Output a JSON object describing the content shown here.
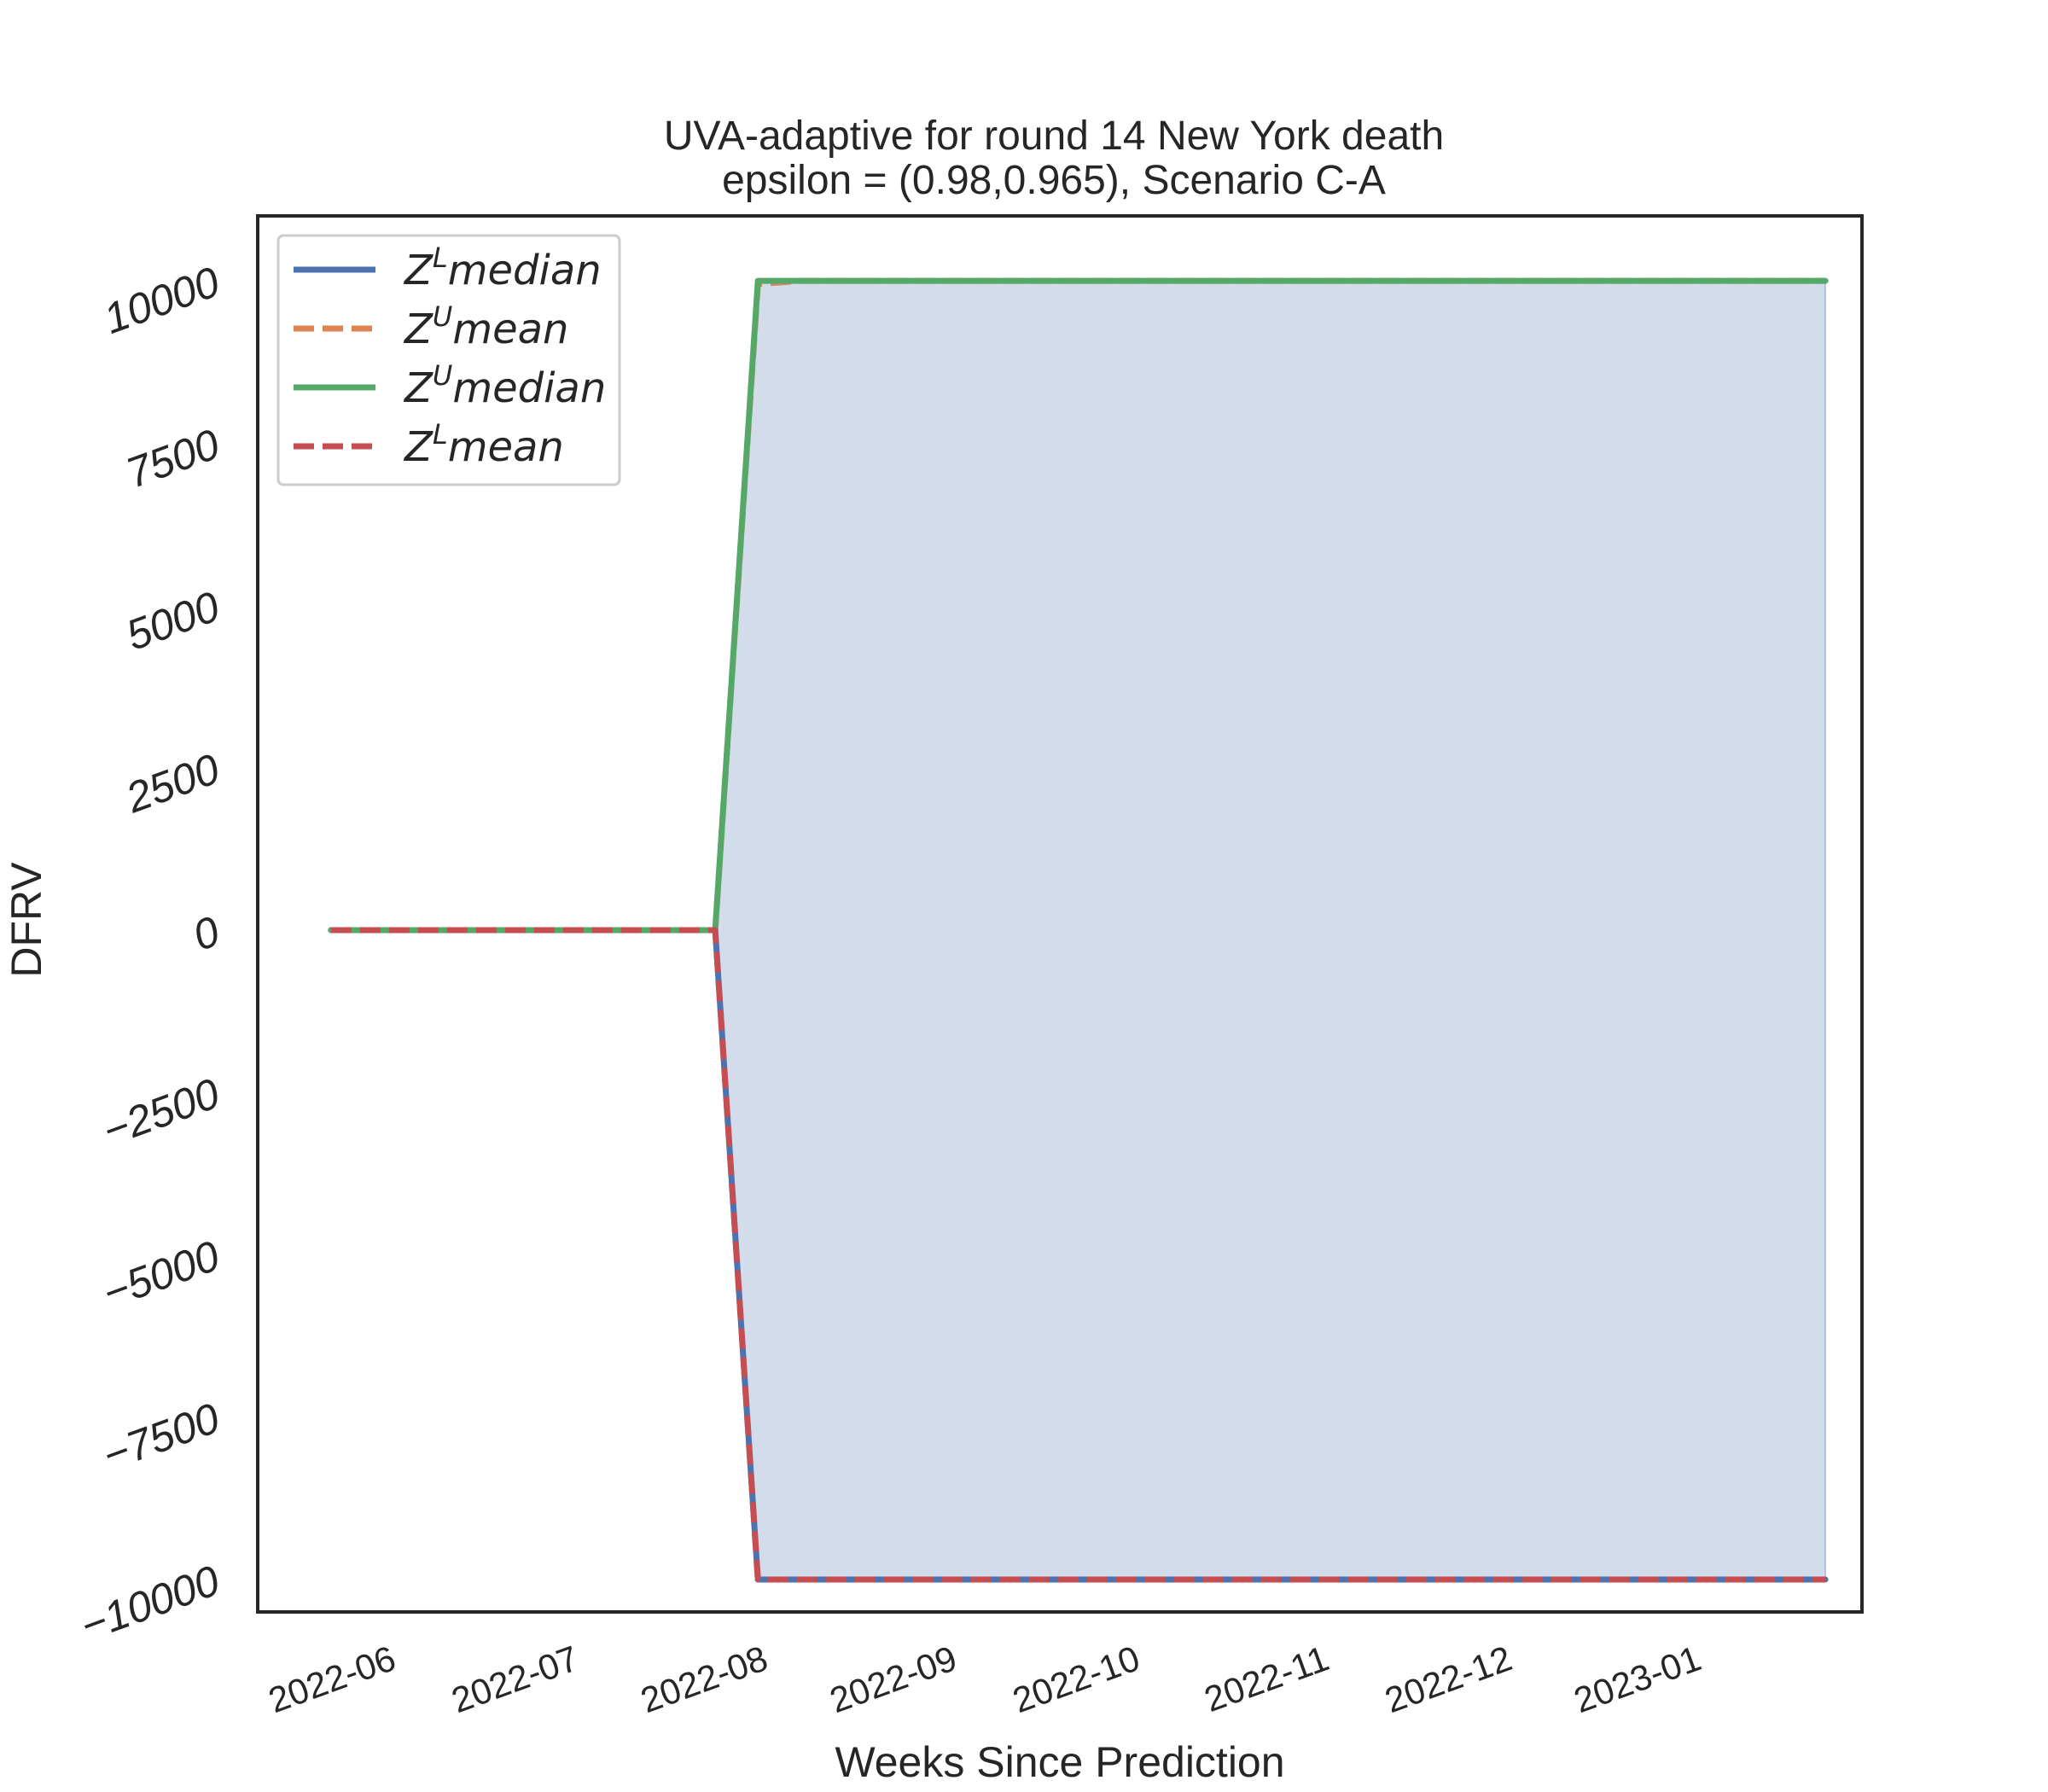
{
  "chart_data": {
    "type": "line",
    "title_line1": "UVA-adaptive for round 14 New York  death",
    "title_line2": "epsilon = (0.98,0.965), Scenario C-A",
    "xlabel": "Weeks Since Prediction",
    "ylabel": "DFRV",
    "ylim": [
      -10500,
      11000
    ],
    "y_ticks": [
      -10000,
      -7500,
      -5000,
      -2500,
      0,
      2500,
      5000,
      7500,
      10000
    ],
    "y_tick_labels": [
      "−10000",
      "−7500",
      "−5000",
      "−2500",
      "0",
      "2500",
      "5000",
      "7500",
      "10000"
    ],
    "xlim": [
      "2022-05-09",
      "2023-01-27"
    ],
    "x_ticks": [
      "2022-06-01",
      "2022-07-01",
      "2022-08-01",
      "2022-09-01",
      "2022-10-01",
      "2022-11-01",
      "2022-12-01",
      "2023-01-01"
    ],
    "x_tick_labels": [
      "2022-06",
      "2022-07",
      "2022-08",
      "2022-09",
      "2022-10",
      "2022-11",
      "2022-12",
      "2023-01"
    ],
    "grid": false,
    "legend_placement": "top-left",
    "x": [
      "2022-05-21",
      "2022-07-23",
      "2022-07-30",
      "2022-08-06",
      "2023-01-21"
    ],
    "series": [
      {
        "legend_base": "Z",
        "legend_sup": "L",
        "legend_rest": "median",
        "color": "#4c72b0",
        "dash": "solid",
        "values": [
          0,
          0,
          -10000,
          -10000,
          -10000
        ]
      },
      {
        "legend_base": "Z",
        "legend_sup": "U",
        "legend_rest": "mean",
        "color": "#dd8452",
        "dash": "dashed",
        "values": [
          0,
          0,
          9950,
          10000,
          10000
        ]
      },
      {
        "legend_base": "Z",
        "legend_sup": "U",
        "legend_rest": "median",
        "color": "#55a868",
        "dash": "solid",
        "values": [
          0,
          0,
          10000,
          10000,
          10000
        ]
      },
      {
        "legend_base": "Z",
        "legend_sup": "L",
        "legend_rest": "mean",
        "color": "#c44e52",
        "dash": "dashed",
        "values": [
          0,
          0,
          -10000,
          -10000,
          -10000
        ]
      }
    ],
    "fill_between": {
      "color": "#4c72b0",
      "opacity": 0.25,
      "x_from": "2022-07-23",
      "x_to": "2023-01-21"
    }
  }
}
